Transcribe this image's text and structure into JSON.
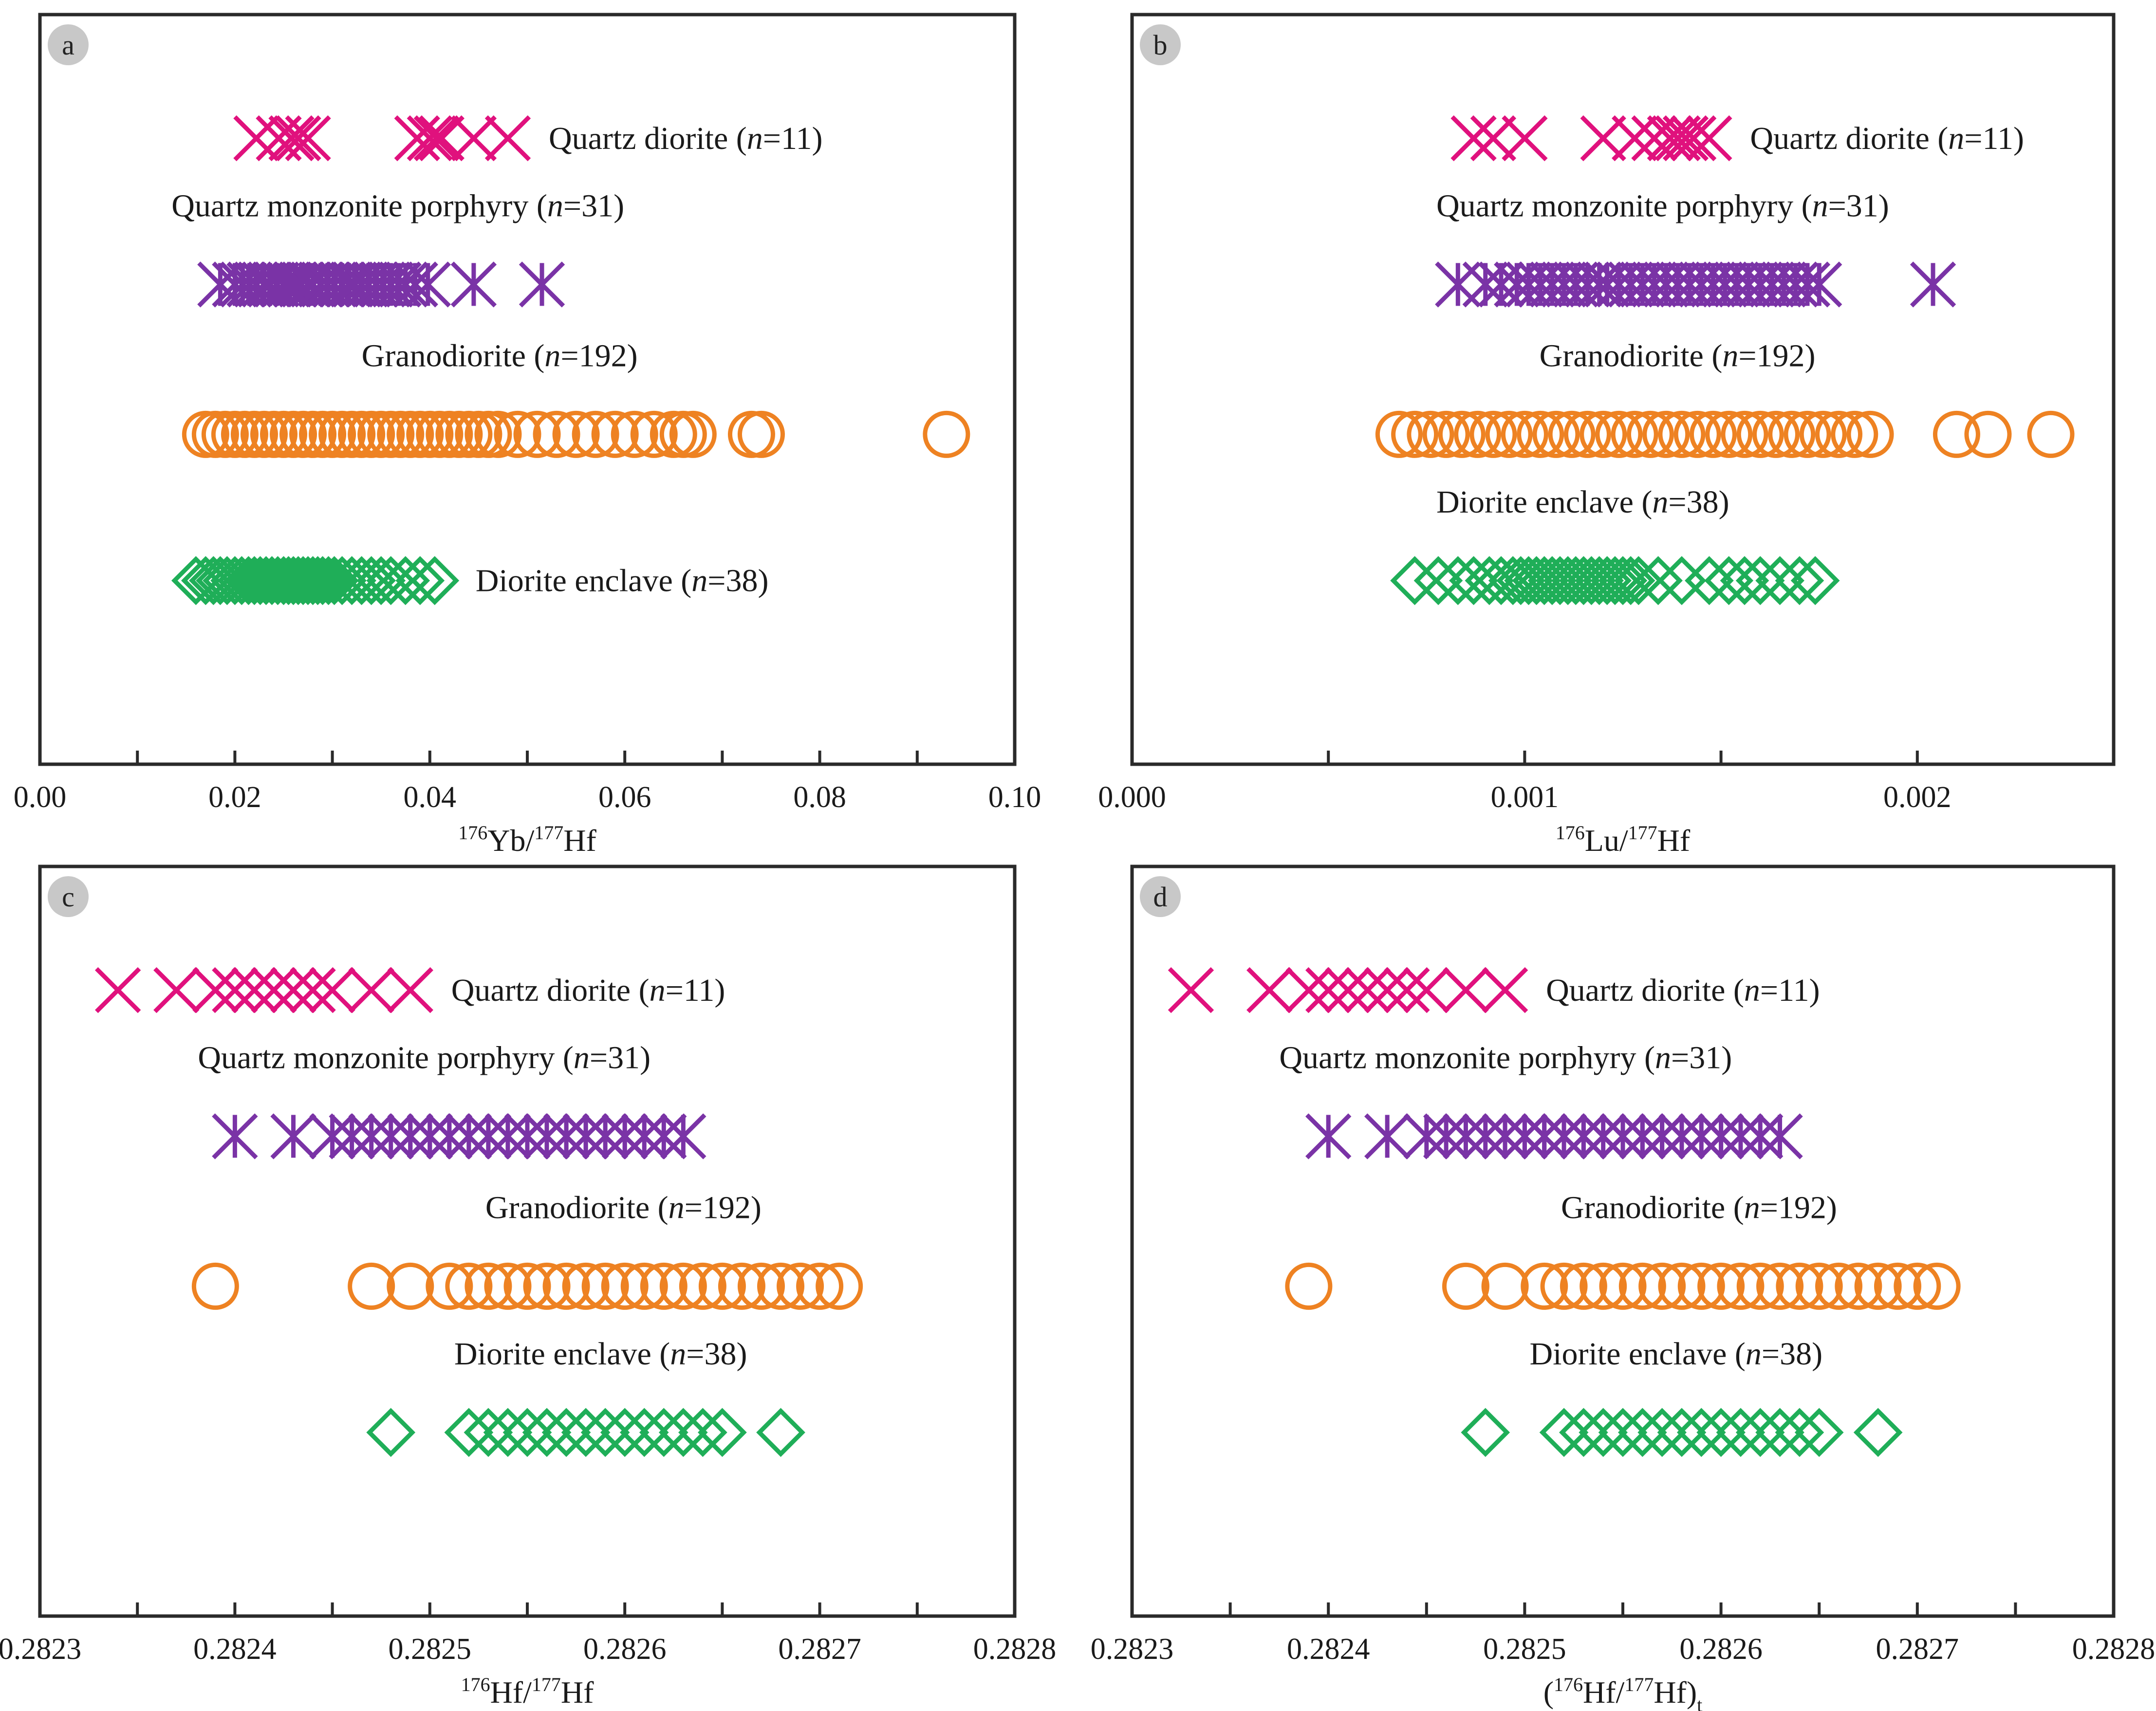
{
  "colors": {
    "quartz_diorite": "#e0117d",
    "quartz_monzonite_porphyry": "#7a33a6",
    "granodiorite": "#ee8222",
    "diorite_enclave": "#1fae58",
    "frame": "#2a2a2a",
    "badge": "#c8c8c8"
  },
  "chart_data": [
    {
      "panel": "a",
      "type": "scatter",
      "xlabel": {
        "sup1": "176",
        "main1": "Yb/",
        "sup2": "177",
        "main2": "Hf",
        "sub": ""
      },
      "xlim": [
        0.0,
        0.1
      ],
      "ticks": [
        0.0,
        0.01,
        0.02,
        0.03,
        0.04,
        0.05,
        0.06,
        0.07,
        0.08,
        0.09,
        0.1
      ],
      "tick_labels": [
        "0.00",
        "0.02",
        "0.04",
        "0.06",
        "0.08",
        "0.10"
      ],
      "tick_label_values": [
        0.0,
        0.02,
        0.04,
        0.06,
        0.08,
        0.1
      ],
      "series": [
        {
          "key": "quartz_diorite",
          "name": "Quartz diorite",
          "n": "11",
          "marker": "x",
          "values": [
            0.0222,
            0.0245,
            0.0258,
            0.0265,
            0.0275,
            0.0387,
            0.04,
            0.0407,
            0.0412,
            0.0445,
            0.048
          ]
        },
        {
          "key": "quartz_monzonite_porphyry",
          "name": "Quartz monzonite porphyry",
          "n": "31",
          "marker": "asterisk",
          "values": [
            0.0185,
            0.02,
            0.0208,
            0.0215,
            0.0222,
            0.023,
            0.0236,
            0.0243,
            0.025,
            0.0256,
            0.0262,
            0.0268,
            0.0275,
            0.028,
            0.0288,
            0.0295,
            0.0302,
            0.031,
            0.0317,
            0.0323,
            0.033,
            0.0337,
            0.0345,
            0.0352,
            0.036,
            0.0368,
            0.0375,
            0.0385,
            0.0398,
            0.0445,
            0.0515
          ]
        },
        {
          "key": "granodiorite",
          "name": "Granodiorite",
          "n": "192",
          "marker": "circle",
          "values": [
            0.017,
            0.018,
            0.019,
            0.02,
            0.021,
            0.022,
            0.023,
            0.024,
            0.025,
            0.026,
            0.027,
            0.028,
            0.029,
            0.03,
            0.031,
            0.032,
            0.033,
            0.034,
            0.035,
            0.036,
            0.037,
            0.038,
            0.039,
            0.04,
            0.041,
            0.042,
            0.043,
            0.044,
            0.045,
            0.046,
            0.047,
            0.049,
            0.051,
            0.053,
            0.055,
            0.057,
            0.059,
            0.061,
            0.063,
            0.065,
            0.066,
            0.067,
            0.073,
            0.074,
            0.093
          ]
        },
        {
          "key": "diorite_enclave",
          "name": "Diorite enclave",
          "n": "38",
          "marker": "diamond",
          "values": [
            0.016,
            0.017,
            0.0178,
            0.0185,
            0.0192,
            0.02,
            0.0207,
            0.0214,
            0.022,
            0.0226,
            0.0232,
            0.0238,
            0.0244,
            0.025,
            0.0255,
            0.026,
            0.0265,
            0.027,
            0.0275,
            0.028,
            0.0285,
            0.029,
            0.0296,
            0.0302,
            0.031,
            0.032,
            0.033,
            0.034,
            0.035,
            0.036,
            0.0375,
            0.039,
            0.0405
          ]
        }
      ]
    },
    {
      "panel": "b",
      "type": "scatter",
      "xlabel": {
        "sup1": "176",
        "main1": "Lu/",
        "sup2": "177",
        "main2": "Hf",
        "sub": ""
      },
      "xlim": [
        0.0,
        0.0025
      ],
      "ticks": [
        0.0,
        0.0005,
        0.001,
        0.0015,
        0.002,
        0.0025
      ],
      "tick_labels": [
        "0.000",
        "0.001",
        "0.002"
      ],
      "tick_label_values": [
        0.0,
        0.001,
        0.002
      ],
      "series": [
        {
          "key": "quartz_diorite",
          "name": "Quartz diorite",
          "n": "11",
          "marker": "x",
          "values": [
            0.00087,
            0.00092,
            0.001,
            0.0012,
            0.00128,
            0.00133,
            0.00137,
            0.00139,
            0.00141,
            0.00143,
            0.00147
          ]
        },
        {
          "key": "quartz_monzonite_porphyry",
          "name": "Quartz monzonite porphyry",
          "n": "31",
          "marker": "asterisk",
          "values": [
            0.00083,
            0.0009,
            0.00094,
            0.00098,
            0.00101,
            0.00104,
            0.00107,
            0.0011,
            0.00113,
            0.00116,
            0.00119,
            0.00121,
            0.00124,
            0.00127,
            0.0013,
            0.00133,
            0.00136,
            0.00139,
            0.00142,
            0.00145,
            0.00148,
            0.00151,
            0.00154,
            0.00157,
            0.0016,
            0.00163,
            0.00166,
            0.00169,
            0.00172,
            0.00175,
            0.00204
          ]
        },
        {
          "key": "granodiorite",
          "name": "Granodiorite",
          "n": "192",
          "marker": "circle",
          "values": [
            0.00068,
            0.00072,
            0.00076,
            0.0008,
            0.00084,
            0.00088,
            0.00092,
            0.00096,
            0.001,
            0.00104,
            0.00108,
            0.00112,
            0.00116,
            0.0012,
            0.00124,
            0.00128,
            0.00132,
            0.00136,
            0.0014,
            0.00144,
            0.00148,
            0.00152,
            0.00156,
            0.0016,
            0.00164,
            0.00168,
            0.00172,
            0.00176,
            0.0018,
            0.00184,
            0.00188,
            0.0021,
            0.00218,
            0.00234
          ]
        },
        {
          "key": "diorite_enclave",
          "name": "Diorite enclave",
          "n": "38",
          "marker": "diamond",
          "values": [
            0.00072,
            0.00078,
            0.00083,
            0.00087,
            0.00091,
            0.00094,
            0.00097,
            0.00099,
            0.00101,
            0.00103,
            0.00105,
            0.00107,
            0.00109,
            0.00111,
            0.00113,
            0.00115,
            0.00117,
            0.00119,
            0.00121,
            0.00123,
            0.00125,
            0.00127,
            0.00129,
            0.00134,
            0.0014,
            0.00147,
            0.00152,
            0.00156,
            0.0016,
            0.00165,
            0.0017,
            0.00174
          ]
        }
      ]
    },
    {
      "panel": "c",
      "type": "scatter",
      "xlabel": {
        "sup1": "176",
        "main1": "Hf/",
        "sup2": "177",
        "main2": "Hf",
        "sub": ""
      },
      "xlim": [
        0.2823,
        0.2828
      ],
      "ticks": [
        0.2823,
        0.28235,
        0.2824,
        0.28245,
        0.2825,
        0.28255,
        0.2826,
        0.28265,
        0.2827,
        0.28275,
        0.2828
      ],
      "tick_labels": [
        "0.2823",
        "0.2824",
        "0.2825",
        "0.2826",
        "0.2827",
        "0.2828"
      ],
      "tick_label_values": [
        0.2823,
        0.2824,
        0.2825,
        0.2826,
        0.2827,
        0.2828
      ],
      "series": [
        {
          "key": "quartz_diorite",
          "name": "Quartz diorite",
          "n": "11",
          "marker": "x",
          "values": [
            0.28234,
            0.28237,
            0.28239,
            0.2824,
            0.28241,
            0.28242,
            0.28243,
            0.28244,
            0.28245,
            0.28247,
            0.28249
          ]
        },
        {
          "key": "quartz_monzonite_porphyry",
          "name": "Quartz monzonite porphyry",
          "n": "31",
          "marker": "asterisk",
          "values": [
            0.2824,
            0.28243,
            0.28246,
            0.28247,
            0.28248,
            0.28249,
            0.2825,
            0.28251,
            0.28252,
            0.28253,
            0.28254,
            0.28255,
            0.28256,
            0.28257,
            0.28258,
            0.28259,
            0.2826,
            0.28261,
            0.28262,
            0.28263,
            0.28253,
            0.28255,
            0.28257,
            0.28251,
            0.28249,
            0.28245,
            0.2826,
            0.28256,
            0.28258,
            0.28252,
            0.2825
          ]
        },
        {
          "key": "granodiorite",
          "name": "Granodiorite",
          "n": "192",
          "marker": "circle",
          "values": [
            0.28239,
            0.28247,
            0.28249,
            0.28251,
            0.28252,
            0.28253,
            0.28254,
            0.28255,
            0.28256,
            0.28257,
            0.28258,
            0.28259,
            0.2826,
            0.28261,
            0.28262,
            0.28263,
            0.28264,
            0.28265,
            0.28266,
            0.28267,
            0.28268,
            0.28269,
            0.2827,
            0.28271
          ]
        },
        {
          "key": "diorite_enclave",
          "name": "Diorite enclave",
          "n": "38",
          "marker": "diamond",
          "values": [
            0.28248,
            0.28252,
            0.28253,
            0.28254,
            0.28255,
            0.28256,
            0.28257,
            0.28258,
            0.28259,
            0.2826,
            0.28261,
            0.28262,
            0.28263,
            0.28264,
            0.28265,
            0.28268
          ]
        }
      ]
    },
    {
      "panel": "d",
      "type": "scatter",
      "xlabel": {
        "sup1": "176",
        "main1": "(",
        "sup2": "177",
        "main2": "Hf",
        "sub": "t",
        "paren": true
      },
      "xlim": [
        0.2823,
        0.2828
      ],
      "ticks": [
        0.2823,
        0.28235,
        0.2824,
        0.28245,
        0.2825,
        0.28255,
        0.2826,
        0.28265,
        0.2827,
        0.28275,
        0.2828
      ],
      "tick_labels": [
        "0.2823",
        "0.2824",
        "0.2825",
        "0.2826",
        "0.2827",
        "0.2828"
      ],
      "tick_label_values": [
        0.2823,
        0.2824,
        0.2825,
        0.2826,
        0.2827,
        0.2828
      ],
      "series": [
        {
          "key": "quartz_diorite",
          "name": "Quartz diorite",
          "n": "11",
          "marker": "x",
          "values": [
            0.28233,
            0.28237,
            0.28239,
            0.2824,
            0.28241,
            0.28242,
            0.28243,
            0.28244,
            0.28245,
            0.28247,
            0.28249
          ]
        },
        {
          "key": "quartz_monzonite_porphyry",
          "name": "Quartz monzonite porphyry",
          "n": "31",
          "marker": "asterisk",
          "values": [
            0.2824,
            0.28243,
            0.28246,
            0.28247,
            0.28248,
            0.28249,
            0.2825,
            0.28251,
            0.28252,
            0.28253,
            0.28254,
            0.28255,
            0.28256,
            0.28257,
            0.28258,
            0.28259,
            0.2826,
            0.28261,
            0.28262,
            0.28263,
            0.28253,
            0.28255,
            0.28257,
            0.28251,
            0.28249,
            0.28245,
            0.2826,
            0.28256,
            0.28258,
            0.28252,
            0.2825
          ]
        },
        {
          "key": "granodiorite",
          "name": "Granodiorite",
          "n": "192",
          "marker": "circle",
          "values": [
            0.28239,
            0.28247,
            0.28249,
            0.28251,
            0.28252,
            0.28253,
            0.28254,
            0.28255,
            0.28256,
            0.28257,
            0.28258,
            0.28259,
            0.2826,
            0.28261,
            0.28262,
            0.28263,
            0.28264,
            0.28265,
            0.28266,
            0.28267,
            0.28268,
            0.28269,
            0.2827,
            0.28271
          ]
        },
        {
          "key": "diorite_enclave",
          "name": "Diorite enclave",
          "n": "38",
          "marker": "diamond",
          "values": [
            0.28248,
            0.28252,
            0.28253,
            0.28254,
            0.28255,
            0.28256,
            0.28257,
            0.28258,
            0.28259,
            0.2826,
            0.28261,
            0.28262,
            0.28263,
            0.28264,
            0.28265,
            0.28268
          ]
        }
      ]
    }
  ]
}
